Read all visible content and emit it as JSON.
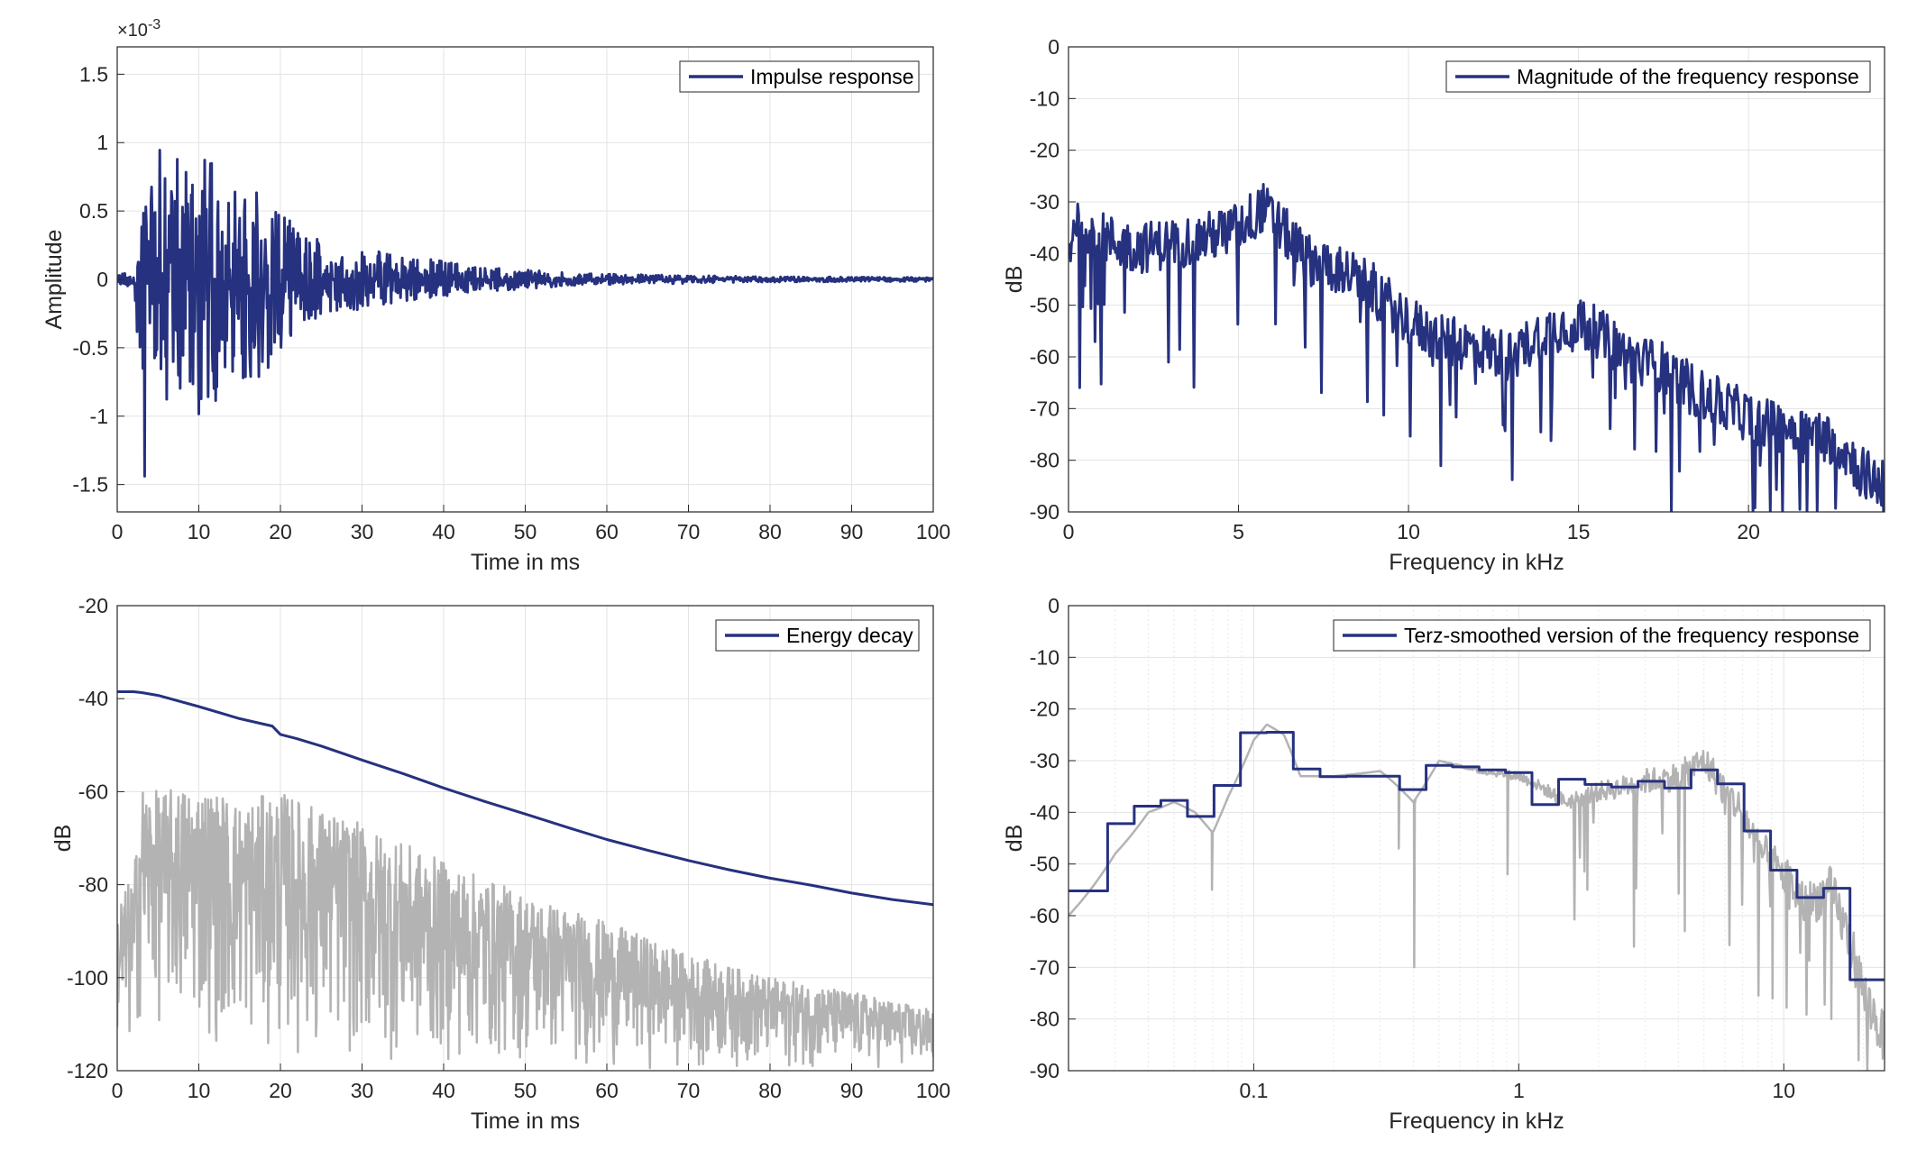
{
  "colors": {
    "series": "#26317f",
    "reference": "#b3b3b3",
    "grid": "#e3e3e3",
    "axis": "#262626",
    "background": "#ffffff"
  },
  "chart_data": [
    {
      "type": "line",
      "id": "impulse",
      "xlabel": "Time in ms",
      "ylabel": "Amplitude",
      "exponent_label": "×10",
      "exponent_power": "-3",
      "xlim": [
        0,
        100
      ],
      "ylim": [
        -1.7,
        1.7
      ],
      "xticks": [
        0,
        10,
        20,
        30,
        40,
        50,
        60,
        70,
        80,
        90,
        100
      ],
      "xticklabels": [
        "0",
        "10",
        "20",
        "30",
        "40",
        "50",
        "60",
        "70",
        "80",
        "90",
        "100"
      ],
      "yticks": [
        -1.5,
        -1,
        -0.5,
        0,
        0.5,
        1,
        1.5
      ],
      "yticklabels": [
        "-1.5",
        "-1",
        "-0.5",
        "0",
        "0.5",
        "1",
        "1.5"
      ],
      "grid": true,
      "legend_position": "top-right",
      "series": [
        {
          "name": "Impulse response",
          "color": "#26317f",
          "envelope": {
            "x": [
              0,
              2,
              3,
              3.5,
              5,
              6,
              8,
              10,
              12,
              14,
              16,
              18,
              20,
              22,
              25,
              30,
              35,
              40,
              45,
              50,
              55,
              60,
              70,
              80,
              100
            ],
            "upper": [
              0.05,
              0.05,
              0.45,
              1.0,
              0.95,
              1.15,
              0.9,
              0.95,
              0.85,
              0.75,
              0.65,
              0.7,
              0.55,
              0.35,
              0.3,
              0.22,
              0.18,
              0.14,
              0.09,
              0.07,
              0.05,
              0.04,
              0.03,
              0.02,
              0.015
            ],
            "lower": [
              -0.05,
              -0.05,
              -1.2,
              -1.55,
              -0.9,
              -1.0,
              -0.8,
              -1.38,
              -0.9,
              -0.8,
              -0.75,
              -0.8,
              -0.6,
              -0.35,
              -0.3,
              -0.22,
              -0.18,
              -0.13,
              -0.09,
              -0.07,
              -0.05,
              -0.04,
              -0.03,
              -0.02,
              -0.015
            ]
          }
        }
      ]
    },
    {
      "type": "line",
      "id": "magnitude",
      "xlabel": "Frequency in kHz",
      "ylabel": "dB",
      "xlim": [
        0,
        24
      ],
      "ylim": [
        -90,
        0
      ],
      "xticks": [
        0,
        5,
        10,
        15,
        20
      ],
      "xticklabels": [
        "0",
        "5",
        "10",
        "15",
        "20"
      ],
      "yticks": [
        0,
        -10,
        -20,
        -30,
        -40,
        -50,
        -60,
        -70,
        -80,
        -90
      ],
      "yticklabels": [
        "0",
        "-10",
        "-20",
        "-30",
        "-40",
        "-50",
        "-60",
        "-70",
        "-80",
        "-90"
      ],
      "grid": true,
      "legend_position": "top-right",
      "series": [
        {
          "name": "Magnitude of the frequency response",
          "color": "#26317f",
          "trend": {
            "x": [
              0,
              0.2,
              1,
              2,
              3,
              4,
              5,
              5.7,
              6.5,
              7,
              8,
              9,
              10,
              11,
              12,
              13,
              14,
              15,
              15.5,
              16.5,
              17.5,
              18.5,
              19.5,
              20.5,
              21.5,
              22.5,
              23.5,
              24
            ],
            "y": [
              -40,
              -33,
              -37,
              -39,
              -38,
              -37,
              -35,
              -31,
              -37,
              -41,
              -43,
              -47,
              -53,
              -57,
              -58,
              -60,
              -55,
              -53,
              -55,
              -60,
              -62,
              -67,
              -70,
              -73,
              -74,
              -76,
              -83,
              -85
            ]
          }
        }
      ]
    },
    {
      "type": "line",
      "id": "energy",
      "xlabel": "Time in ms",
      "ylabel": "dB",
      "xlim": [
        0,
        100
      ],
      "ylim": [
        -120,
        -20
      ],
      "xticks": [
        0,
        10,
        20,
        30,
        40,
        50,
        60,
        70,
        80,
        90,
        100
      ],
      "xticklabels": [
        "0",
        "10",
        "20",
        "30",
        "40",
        "50",
        "60",
        "70",
        "80",
        "90",
        "100"
      ],
      "yticks": [
        -20,
        -40,
        -60,
        -80,
        -100,
        -120
      ],
      "yticklabels": [
        "-20",
        "-40",
        "-60",
        "-80",
        "-100",
        "-120"
      ],
      "grid": true,
      "legend_position": "top-right",
      "series": [
        {
          "name": "Energy decay",
          "color": "#26317f",
          "x": [
            0,
            2,
            3,
            5,
            10,
            15,
            19,
            20,
            22,
            25,
            30,
            35,
            40,
            45,
            50,
            55,
            60,
            65,
            70,
            75,
            80,
            85,
            90,
            95,
            100
          ],
          "y": [
            -38.5,
            -38.5,
            -38.7,
            -39.3,
            -41.7,
            -44.3,
            -45.9,
            -47.7,
            -48.6,
            -50.2,
            -53.2,
            -56.1,
            -59.2,
            -62.1,
            -64.8,
            -67.6,
            -70.3,
            -72.6,
            -74.8,
            -76.8,
            -78.6,
            -80.1,
            -81.8,
            -83.2,
            -84.3
          ]
        },
        {
          "color": "#b3b3b3",
          "envelope": {
            "x": [
              0,
              2,
              3,
              5,
              10,
              15,
              20,
              30,
              40,
              50,
              60,
              70,
              80,
              90,
              100
            ],
            "upper": [
              -83,
              -78,
              -58,
              -60,
              -58,
              -62,
              -60,
              -67,
              -75,
              -82,
              -88,
              -95,
              -100,
              -103,
              -107
            ],
            "lower": [
              -120,
              -120,
              -110,
              -112,
              -115,
              -117,
              -118,
              -120,
              -120,
              -120,
              -120,
              -120,
              -120,
              -120,
              -120
            ]
          }
        }
      ]
    },
    {
      "type": "line",
      "id": "terz",
      "xlabel": "Frequency in kHz",
      "ylabel": "dB",
      "xscale": "log",
      "xlim": [
        0.02,
        24
      ],
      "ylim": [
        -90,
        0
      ],
      "xticks": [
        0.1,
        1,
        10
      ],
      "xticklabels": [
        "0.1",
        "1",
        "10"
      ],
      "yticks": [
        0,
        -10,
        -20,
        -30,
        -40,
        -50,
        -60,
        -70,
        -80,
        -90
      ],
      "yticklabels": [
        "0",
        "-10",
        "-20",
        "-30",
        "-40",
        "-50",
        "-60",
        "-70",
        "-80",
        "-90"
      ],
      "grid": true,
      "legend_position": "top-right",
      "series": [
        {
          "name": "Terz-smoothed version of the frequency response",
          "color": "#26317f",
          "step_edges": [
            0.02,
            0.0281,
            0.0354,
            0.0446,
            0.0562,
            0.0708,
            0.0891,
            0.112,
            0.141,
            0.178,
            0.224,
            0.282,
            0.355,
            0.447,
            0.562,
            0.708,
            0.891,
            1.122,
            1.413,
            1.778,
            2.239,
            2.818,
            3.548,
            4.467,
            5.623,
            7.079,
            8.913,
            11.22,
            14.13,
            17.78,
            24
          ],
          "step_values": [
            -55.2,
            -42.2,
            -38.8,
            -37.7,
            -40.8,
            -34.8,
            -24.6,
            -24.5,
            -31.6,
            -33.1,
            -33,
            -33,
            -35.6,
            -30.9,
            -31.2,
            -31.8,
            -32.3,
            -38.5,
            -33.6,
            -34.6,
            -35.1,
            -34,
            -35.3,
            -31.8,
            -34.5,
            -43.6,
            -51.2,
            -56.5,
            -54.7,
            -72.4
          ]
        },
        {
          "color": "#b3b3b3",
          "trend": {
            "x": [
              0.02,
              0.03,
              0.04,
              0.05,
              0.06,
              0.07,
              0.08,
              0.1,
              0.112,
              0.13,
              0.15,
              0.2,
              0.3,
              0.4,
              0.5,
              0.7,
              1,
              1.5,
              2,
              3,
              4,
              5,
              6,
              7,
              8,
              10,
              12,
              15,
              18,
              20,
              24
            ],
            "y": [
              -60,
              -48,
              -40,
              -38,
              -40,
              -44,
              -37,
              -26,
              -23,
              -25,
              -33,
              -33,
              -32,
              -38,
              -30,
              -32,
              -33,
              -38,
              -36,
              -34,
              -33,
              -30,
              -36,
              -40,
              -47,
              -52,
              -58,
              -55,
              -66,
              -75,
              -84
            ]
          },
          "dips": [
            {
              "x": 0.069,
              "y": -55
            },
            {
              "x": 0.4,
              "y": -70
            },
            {
              "x": 0.35,
              "y": -47
            },
            {
              "x": 0.9,
              "y": -52
            },
            {
              "x": 1.8,
              "y": -55
            },
            {
              "x": 2.7,
              "y": -66
            },
            {
              "x": 4.2,
              "y": -63
            },
            {
              "x": 9,
              "y": -76
            },
            {
              "x": 15,
              "y": -80
            },
            {
              "x": 19,
              "y": -88
            }
          ]
        }
      ]
    }
  ]
}
